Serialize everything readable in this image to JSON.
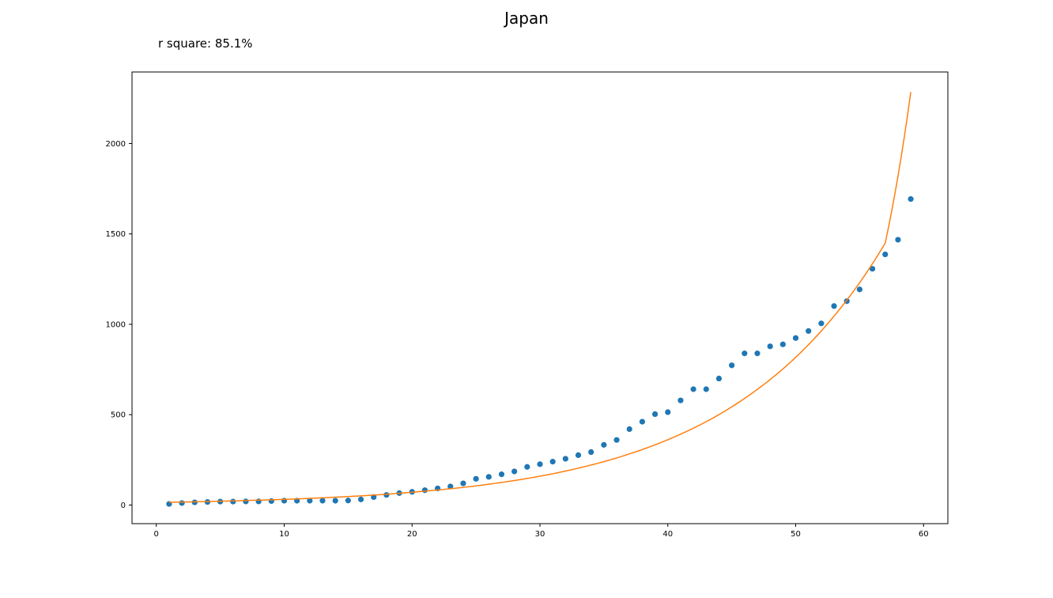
{
  "chart_data": {
    "type": "scatter",
    "title": "Japan",
    "annotation": "r square: 85.1%",
    "xlabel": "",
    "ylabel": "",
    "xlim": [
      -1.9,
      61.9
    ],
    "ylim": [
      -103,
      2396
    ],
    "xticks": [
      0,
      10,
      20,
      30,
      40,
      50,
      60
    ],
    "yticks": [
      0,
      500,
      1000,
      1500,
      2000
    ],
    "grid": false,
    "legend": "none",
    "series": [
      {
        "kind": "points",
        "color": "#1f77b4",
        "x": [
          1,
          2,
          3,
          4,
          5,
          6,
          7,
          8,
          9,
          10,
          11,
          12,
          13,
          14,
          15,
          16,
          17,
          18,
          19,
          20,
          21,
          22,
          23,
          24,
          25,
          26,
          27,
          28,
          29,
          30,
          31,
          32,
          33,
          34,
          35,
          36,
          37,
          38,
          39,
          40,
          41,
          42,
          43,
          44,
          45,
          46,
          47,
          48,
          49,
          50,
          51,
          52,
          53,
          54,
          55,
          56,
          57,
          58,
          59
        ],
        "y": [
          6,
          11,
          15,
          17,
          19,
          19,
          20,
          20,
          22,
          24,
          24,
          24,
          24,
          24,
          25,
          31,
          44,
          56,
          66,
          73,
          82,
          92,
          103,
          120,
          145,
          156,
          170,
          186,
          211,
          226,
          240,
          256,
          276,
          293,
          333,
          360,
          420,
          461,
          503,
          514,
          579,
          641,
          641,
          700,
          773,
          839,
          839,
          878,
          889,
          924,
          963,
          1005,
          1101,
          1128,
          1193,
          1307,
          1387,
          1468,
          1693
        ]
      },
      {
        "kind": "fit-curve",
        "color": "#ff7f0e",
        "x": [
          1,
          3,
          5,
          7,
          9,
          11,
          13,
          15,
          17,
          19,
          21,
          23,
          25,
          27,
          29,
          31,
          33,
          35,
          37,
          39,
          41,
          43,
          45,
          47,
          49,
          51,
          53,
          55,
          57,
          59
        ],
        "y": [
          15,
          18,
          21,
          25,
          29,
          34,
          40,
          47,
          55,
          65,
          77,
          90,
          106,
          125,
          147,
          173,
          204,
          240,
          283,
          333,
          392,
          461,
          543,
          640,
          753,
          887,
          1045,
          1230,
          1449,
          2285
        ]
      }
    ]
  }
}
